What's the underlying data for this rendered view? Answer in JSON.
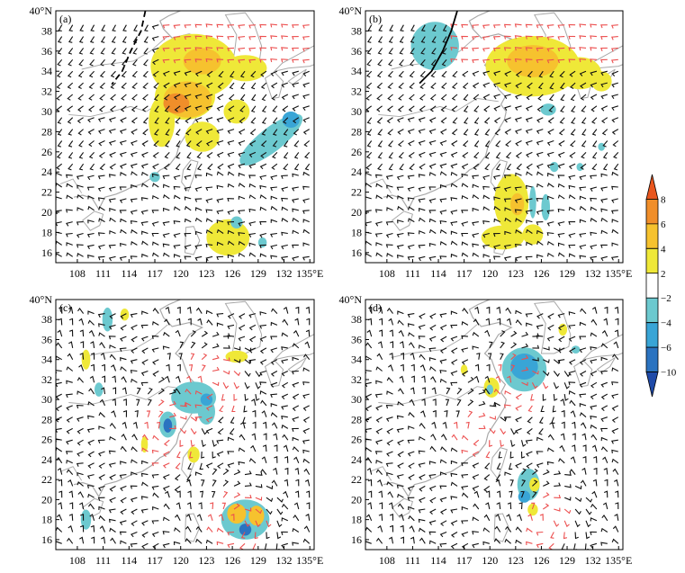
{
  "chart_data": [
    {
      "type": "heatmap",
      "panel_label": "(a)",
      "x_ticks": [
        "108",
        "111",
        "114",
        "117",
        "120",
        "123",
        "126",
        "129",
        "132",
        "135°E"
      ],
      "y_ticks": [
        "40°N",
        "38",
        "36",
        "34",
        "32",
        "30",
        "28",
        "26",
        "24",
        "22",
        "20",
        "18",
        "16"
      ],
      "xlim": [
        105.5,
        135.5
      ],
      "ylim": [
        15,
        40
      ],
      "front_line": [
        [
          115.9,
          40
        ],
        [
          115.4,
          38
        ],
        [
          114.2,
          36
        ],
        [
          113.2,
          34
        ],
        [
          112,
          32.7
        ]
      ],
      "blobs": [
        {
          "lon": 121.5,
          "lat": 34.5,
          "rx": 5.0,
          "ry": 3.2,
          "v": 3
        },
        {
          "lon": 120.5,
          "lat": 31.5,
          "rx": 3.5,
          "ry": 2.3,
          "v": 3
        },
        {
          "lon": 127.5,
          "lat": 34.3,
          "rx": 2.5,
          "ry": 1.3,
          "v": 3
        },
        {
          "lon": 126.5,
          "lat": 30.0,
          "rx": 1.5,
          "ry": 1.2,
          "v": 3
        },
        {
          "lon": 122.5,
          "lat": 27.5,
          "rx": 2.0,
          "ry": 1.5,
          "v": 3
        },
        {
          "lon": 117.8,
          "lat": 29.0,
          "rx": 1.5,
          "ry": 2.5,
          "v": 3
        },
        {
          "lon": 125.5,
          "lat": 17.5,
          "rx": 2.5,
          "ry": 1.8,
          "v": 3
        },
        {
          "lon": 120.8,
          "lat": 31.2,
          "rx": 2.8,
          "ry": 1.8,
          "v": 5
        },
        {
          "lon": 122.5,
          "lat": 35.0,
          "rx": 2.2,
          "ry": 1.3,
          "v": 5
        },
        {
          "lon": 119.5,
          "lat": 30.8,
          "rx": 1.5,
          "ry": 1.0,
          "v": 7
        },
        {
          "lon": 130.5,
          "lat": 27.2,
          "rx": 4.5,
          "ry": 1.2,
          "rot": -38,
          "v": -3
        },
        {
          "lon": 132.8,
          "lat": 29.2,
          "rx": 1.0,
          "ry": 0.8,
          "v": -5
        },
        {
          "lon": 117.0,
          "lat": 23.5,
          "rx": 0.6,
          "ry": 0.5,
          "v": -3
        },
        {
          "lon": 126.5,
          "lat": 19.0,
          "rx": 0.7,
          "ry": 0.6,
          "v": -3
        },
        {
          "lon": 129.5,
          "lat": 17.0,
          "rx": 0.5,
          "ry": 0.5,
          "v": -3
        }
      ]
    },
    {
      "type": "heatmap",
      "panel_label": "(b)",
      "x_ticks": [
        "108",
        "111",
        "114",
        "117",
        "120",
        "123",
        "126",
        "129",
        "132",
        "135°E"
      ],
      "y_ticks": [
        "40°N",
        "38",
        "36",
        "34",
        "32",
        "30",
        "28",
        "26",
        "24",
        "22",
        "20",
        "18",
        "16"
      ],
      "xlim": [
        105.5,
        135.5
      ],
      "ylim": [
        15,
        40
      ],
      "front_line": [
        [
          116.2,
          40
        ],
        [
          115.5,
          38
        ],
        [
          114.5,
          36
        ],
        [
          113.2,
          34
        ],
        [
          111.8,
          32.8
        ]
      ],
      "blobs": [
        {
          "lon": 125.0,
          "lat": 34.5,
          "rx": 5.5,
          "ry": 3.0,
          "v": 3
        },
        {
          "lon": 130.5,
          "lat": 33.8,
          "rx": 2.5,
          "ry": 1.6,
          "v": 3
        },
        {
          "lon": 133.0,
          "lat": 33.0,
          "rx": 1.2,
          "ry": 1.0,
          "v": 3
        },
        {
          "lon": 122.5,
          "lat": 21.0,
          "rx": 2.0,
          "ry": 2.8,
          "v": 3
        },
        {
          "lon": 121.5,
          "lat": 17.5,
          "rx": 2.5,
          "ry": 1.2,
          "v": 3
        },
        {
          "lon": 125.0,
          "lat": 17.8,
          "rx": 1.2,
          "ry": 1.0,
          "v": 3
        },
        {
          "lon": 125.0,
          "lat": 35.0,
          "rx": 3.0,
          "ry": 1.6,
          "v": 5
        },
        {
          "lon": 123.2,
          "lat": 20.8,
          "rx": 0.8,
          "ry": 1.1,
          "v": 5
        },
        {
          "lon": 113.6,
          "lat": 36.5,
          "rx": 2.8,
          "ry": 2.4,
          "v": -3
        },
        {
          "lon": 125.0,
          "lat": 21.0,
          "rx": 0.4,
          "ry": 1.6,
          "v": -3
        },
        {
          "lon": 126.5,
          "lat": 20.5,
          "rx": 0.5,
          "ry": 1.3,
          "v": -3
        },
        {
          "lon": 126.8,
          "lat": 30.2,
          "rx": 0.9,
          "ry": 0.6,
          "v": -3
        },
        {
          "lon": 127.5,
          "lat": 24.5,
          "rx": 0.5,
          "ry": 0.5,
          "v": -3
        },
        {
          "lon": 130.5,
          "lat": 24.5,
          "rx": 0.4,
          "ry": 0.4,
          "v": -3
        },
        {
          "lon": 133.0,
          "lat": 26.5,
          "rx": 0.4,
          "ry": 0.4,
          "v": -3
        }
      ]
    },
    {
      "type": "heatmap",
      "panel_label": "(c)",
      "x_ticks": [
        "108",
        "111",
        "114",
        "117",
        "120",
        "123",
        "126",
        "129",
        "132",
        "135°E"
      ],
      "y_ticks": [
        "40°N",
        "38",
        "36",
        "34",
        "32",
        "30",
        "28",
        "26",
        "24",
        "22",
        "20",
        "18",
        "16"
      ],
      "xlim": [
        105.5,
        135.5
      ],
      "ylim": [
        15,
        40
      ],
      "front_line": [],
      "blobs": [
        {
          "lon": 111.5,
          "lat": 38.0,
          "rx": 0.6,
          "ry": 1.2,
          "v": -3
        },
        {
          "lon": 113.5,
          "lat": 38.5,
          "rx": 0.5,
          "ry": 0.6,
          "v": 3
        },
        {
          "lon": 109.0,
          "lat": 34.0,
          "rx": 0.5,
          "ry": 1.0,
          "v": 3
        },
        {
          "lon": 110.5,
          "lat": 31.0,
          "rx": 0.5,
          "ry": 0.7,
          "v": -3
        },
        {
          "lon": 126.5,
          "lat": 34.3,
          "rx": 1.3,
          "ry": 0.6,
          "v": 3
        },
        {
          "lon": 121.5,
          "lat": 30.2,
          "rx": 2.6,
          "ry": 1.6,
          "v": -3
        },
        {
          "lon": 123.0,
          "lat": 28.8,
          "rx": 1.0,
          "ry": 1.3,
          "v": -3
        },
        {
          "lon": 123.0,
          "lat": 30.0,
          "rx": 0.7,
          "ry": 0.6,
          "v": -5
        },
        {
          "lon": 118.5,
          "lat": 27.5,
          "rx": 1.0,
          "ry": 1.3,
          "v": -3
        },
        {
          "lon": 118.5,
          "lat": 27.4,
          "rx": 0.5,
          "ry": 0.7,
          "v": -6
        },
        {
          "lon": 115.8,
          "lat": 25.5,
          "rx": 0.4,
          "ry": 0.8,
          "v": 3
        },
        {
          "lon": 121.5,
          "lat": 24.5,
          "rx": 0.7,
          "ry": 0.8,
          "v": 3
        },
        {
          "lon": 109.0,
          "lat": 18.0,
          "rx": 0.6,
          "ry": 1.0,
          "v": -3
        },
        {
          "lon": 127.5,
          "lat": 18.0,
          "rx": 2.8,
          "ry": 2.0,
          "v": -3
        },
        {
          "lon": 126.5,
          "lat": 18.6,
          "rx": 1.1,
          "ry": 1.0,
          "v": 5
        },
        {
          "lon": 128.8,
          "lat": 18.4,
          "rx": 0.9,
          "ry": 1.0,
          "v": 5
        },
        {
          "lon": 127.5,
          "lat": 17.0,
          "rx": 0.7,
          "ry": 0.6,
          "v": -6
        }
      ]
    },
    {
      "type": "heatmap",
      "panel_label": "(d)",
      "x_ticks": [
        "108",
        "111",
        "114",
        "117",
        "120",
        "123",
        "126",
        "129",
        "132",
        "135°E"
      ],
      "y_ticks": [
        "40°N",
        "38",
        "36",
        "34",
        "32",
        "30",
        "28",
        "26",
        "24",
        "22",
        "20",
        "18",
        "16"
      ],
      "xlim": [
        105.5,
        135.5
      ],
      "ylim": [
        15,
        40
      ],
      "front_line": [],
      "blobs": [
        {
          "lon": 124.0,
          "lat": 33.0,
          "rx": 2.6,
          "ry": 2.2,
          "v": -3
        },
        {
          "lon": 124.0,
          "lat": 33.3,
          "rx": 1.6,
          "ry": 1.3,
          "v": -5
        },
        {
          "lon": 120.2,
          "lat": 31.2,
          "rx": 0.9,
          "ry": 1.0,
          "v": 3
        },
        {
          "lon": 120.0,
          "lat": 31.0,
          "rx": 0.4,
          "ry": 0.5,
          "v": -3
        },
        {
          "lon": 128.5,
          "lat": 37.0,
          "rx": 0.5,
          "ry": 0.6,
          "v": 3
        },
        {
          "lon": 130.0,
          "lat": 35.0,
          "rx": 0.5,
          "ry": 0.4,
          "v": -3
        },
        {
          "lon": 117.0,
          "lat": 33.0,
          "rx": 0.4,
          "ry": 0.5,
          "v": 3
        },
        {
          "lon": 124.5,
          "lat": 21.5,
          "rx": 1.3,
          "ry": 1.6,
          "v": -3
        },
        {
          "lon": 124.0,
          "lat": 20.3,
          "rx": 0.7,
          "ry": 0.6,
          "v": -5
        },
        {
          "lon": 125.2,
          "lat": 21.5,
          "rx": 0.6,
          "ry": 0.7,
          "v": 3
        },
        {
          "lon": 125.0,
          "lat": 19.0,
          "rx": 0.6,
          "ry": 0.6,
          "v": 3
        }
      ]
    }
  ],
  "colorbar": {
    "labels": [
      "8",
      "6",
      "4",
      "2",
      "−2",
      "−4",
      "−6",
      "−10"
    ],
    "fill_colors": [
      "#e8561e",
      "#f08e2a",
      "#f6c22e",
      "#efe838",
      "#ffffff",
      "#6cc9cf",
      "#39a5d6",
      "#2b73c0",
      "#1f4aa8"
    ]
  }
}
